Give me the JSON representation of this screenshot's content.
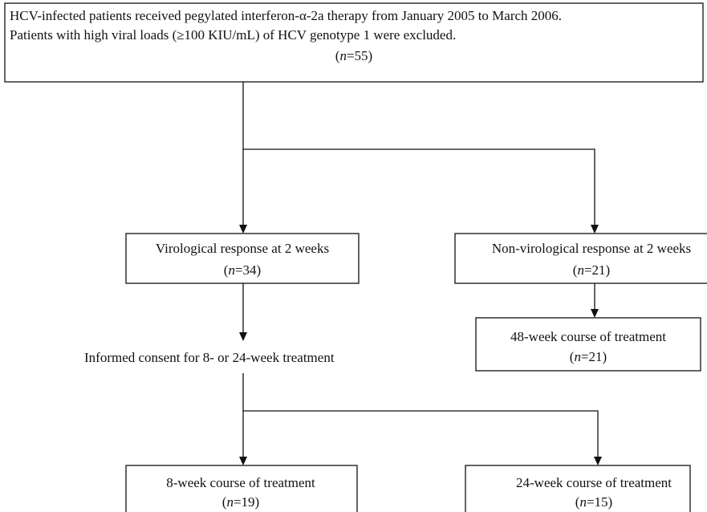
{
  "nodes": [
    {
      "lines": [
        "HCV-infected patients received pegylated interferon-α-2a therapy from January 2005 to March 2006.",
        "Patients with high viral loads (≥100 KIU/mL) of HCV genotype 1 were excluded.",
        "(n=55)"
      ]
    },
    {
      "lines": [
        "Virological response at 2 weeks",
        "(n=34)"
      ]
    },
    {
      "lines": [
        "Non-virological response at 2 weeks",
        "(n=21)"
      ]
    },
    {
      "lines": [
        "48-week course of treatment",
        "(n=21)"
      ]
    },
    {
      "lines": [
        "Informed consent for 8- or 24-week treatment"
      ]
    },
    {
      "lines": [
        "8-week course of treatment",
        "(n=19)"
      ]
    },
    {
      "lines": [
        "24-week course of treatment",
        "(n=15)"
      ]
    }
  ]
}
